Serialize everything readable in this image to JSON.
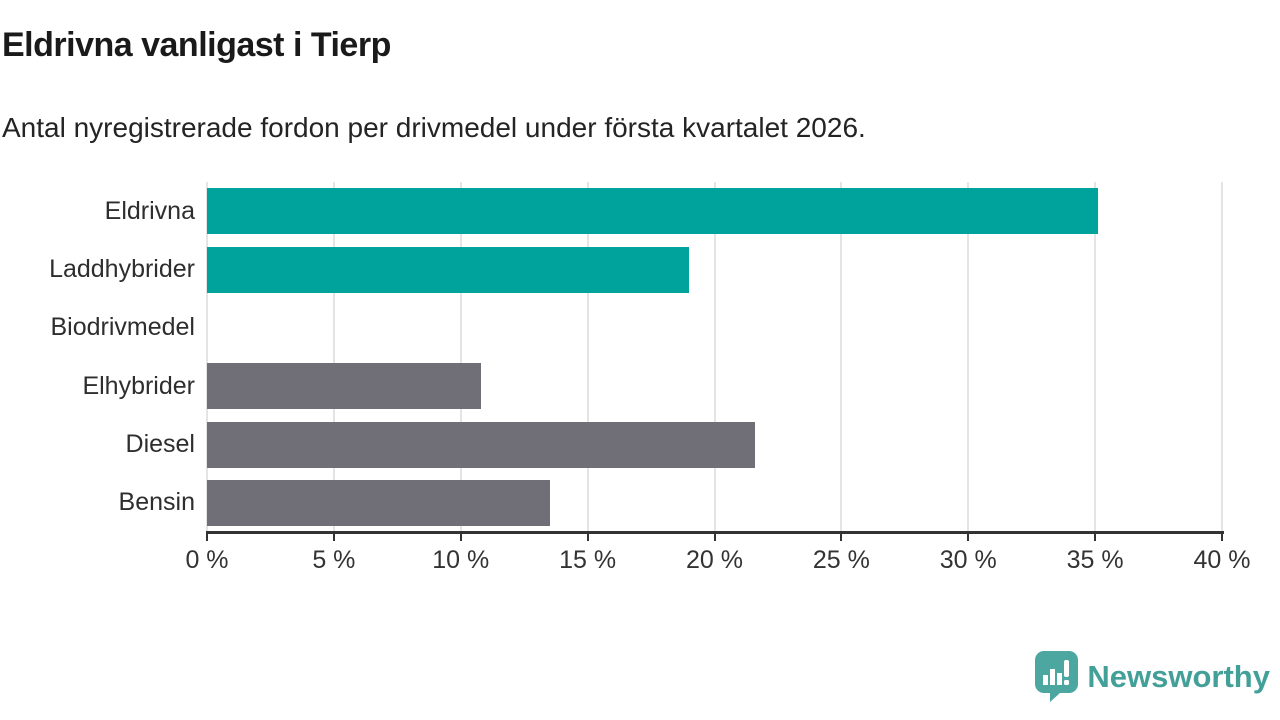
{
  "header": {
    "title": "Eldrivna vanligast i Tierp",
    "subtitle": "Antal nyregistrerade fordon per drivmedel under första kvartalet 2026."
  },
  "chart_data": {
    "type": "bar",
    "orientation": "horizontal",
    "title": "Eldrivna vanligast i Tierp",
    "subtitle": "Antal nyregistrerade fordon per drivmedel under första kvartalet 2026.",
    "categories": [
      "Eldrivna",
      "Laddhybrider",
      "Biodrivmedel",
      "Elhybrider",
      "Diesel",
      "Bensin"
    ],
    "values": [
      35.1,
      19.0,
      0,
      10.8,
      21.6,
      13.5
    ],
    "unit": "%",
    "bar_colors": [
      "#00a39c",
      "#00a39c",
      "#00a39c",
      "#706e76",
      "#706e76",
      "#706e76"
    ],
    "accent_color": "#00a39c",
    "neutral_color": "#706e76",
    "xlabel": "",
    "ylabel": "",
    "xlim": [
      0,
      40
    ],
    "x_ticks": [
      0,
      5,
      10,
      15,
      20,
      25,
      30,
      35,
      40
    ],
    "x_tick_labels": [
      "0 %",
      "5 %",
      "10 %",
      "15 %",
      "20 %",
      "25 %",
      "30 %",
      "35 %",
      "40 %"
    ],
    "grid": true,
    "gridline_color": "#e4e4e4",
    "axis_color": "#333333",
    "legend": "none"
  },
  "footer": {
    "brand": "Newsworthy",
    "brand_color": "#43a098",
    "logo_icon": "newsworthy-speech-bubble-chart-icon",
    "logo_color": "#4ba79f"
  }
}
